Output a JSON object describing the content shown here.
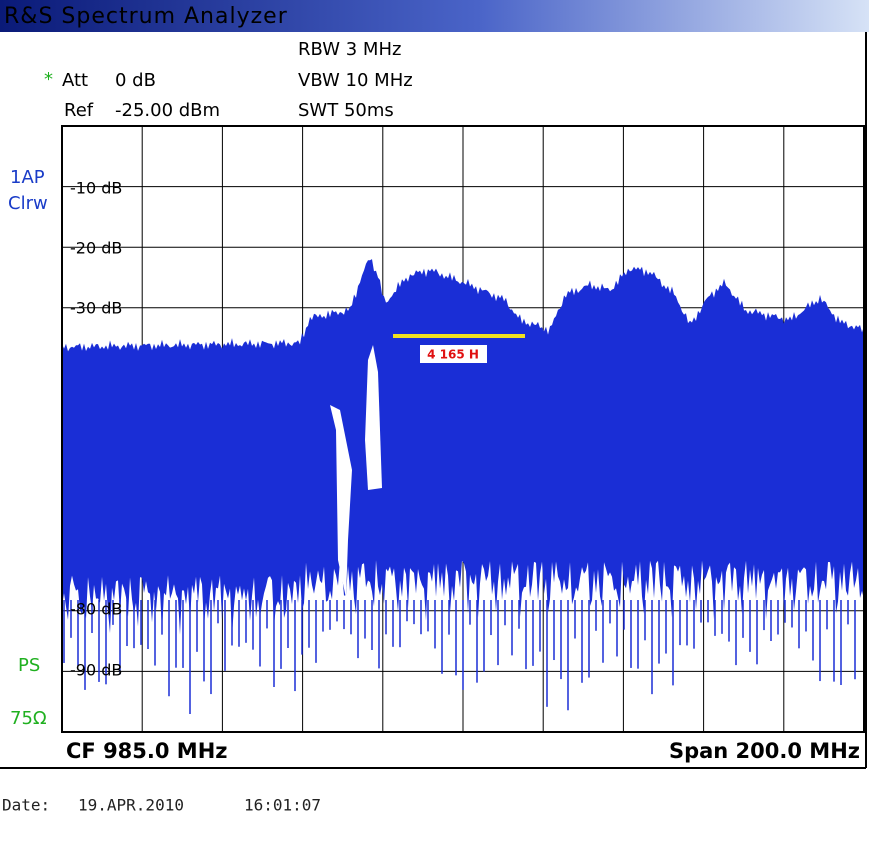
{
  "title": "R&S Spectrum Analyzer",
  "settings": {
    "rbw": "RBW 3 MHz",
    "vbw": "VBW 10 MHz",
    "swt": "SWT 50ms",
    "att_marker": "*",
    "att_label": "Att",
    "att_value": "0 dB",
    "ref_label": "Ref",
    "ref_value": "-25.00 dBm"
  },
  "side_labels": {
    "trace": "1AP",
    "mode": "Clrw",
    "ps": "PS",
    "impedance": "75Ω"
  },
  "y_labels": [
    "-10 dB",
    "-20 dB",
    "-30 dB",
    "-80 dB",
    "-90 dB"
  ],
  "marker_label": "4 165 H",
  "footer": {
    "center": "CF 985.0 MHz",
    "span": "Span 200.0 MHz"
  },
  "date": {
    "label": "Date:",
    "date": "19.APR.2010",
    "time": "16:01:07"
  }
}
